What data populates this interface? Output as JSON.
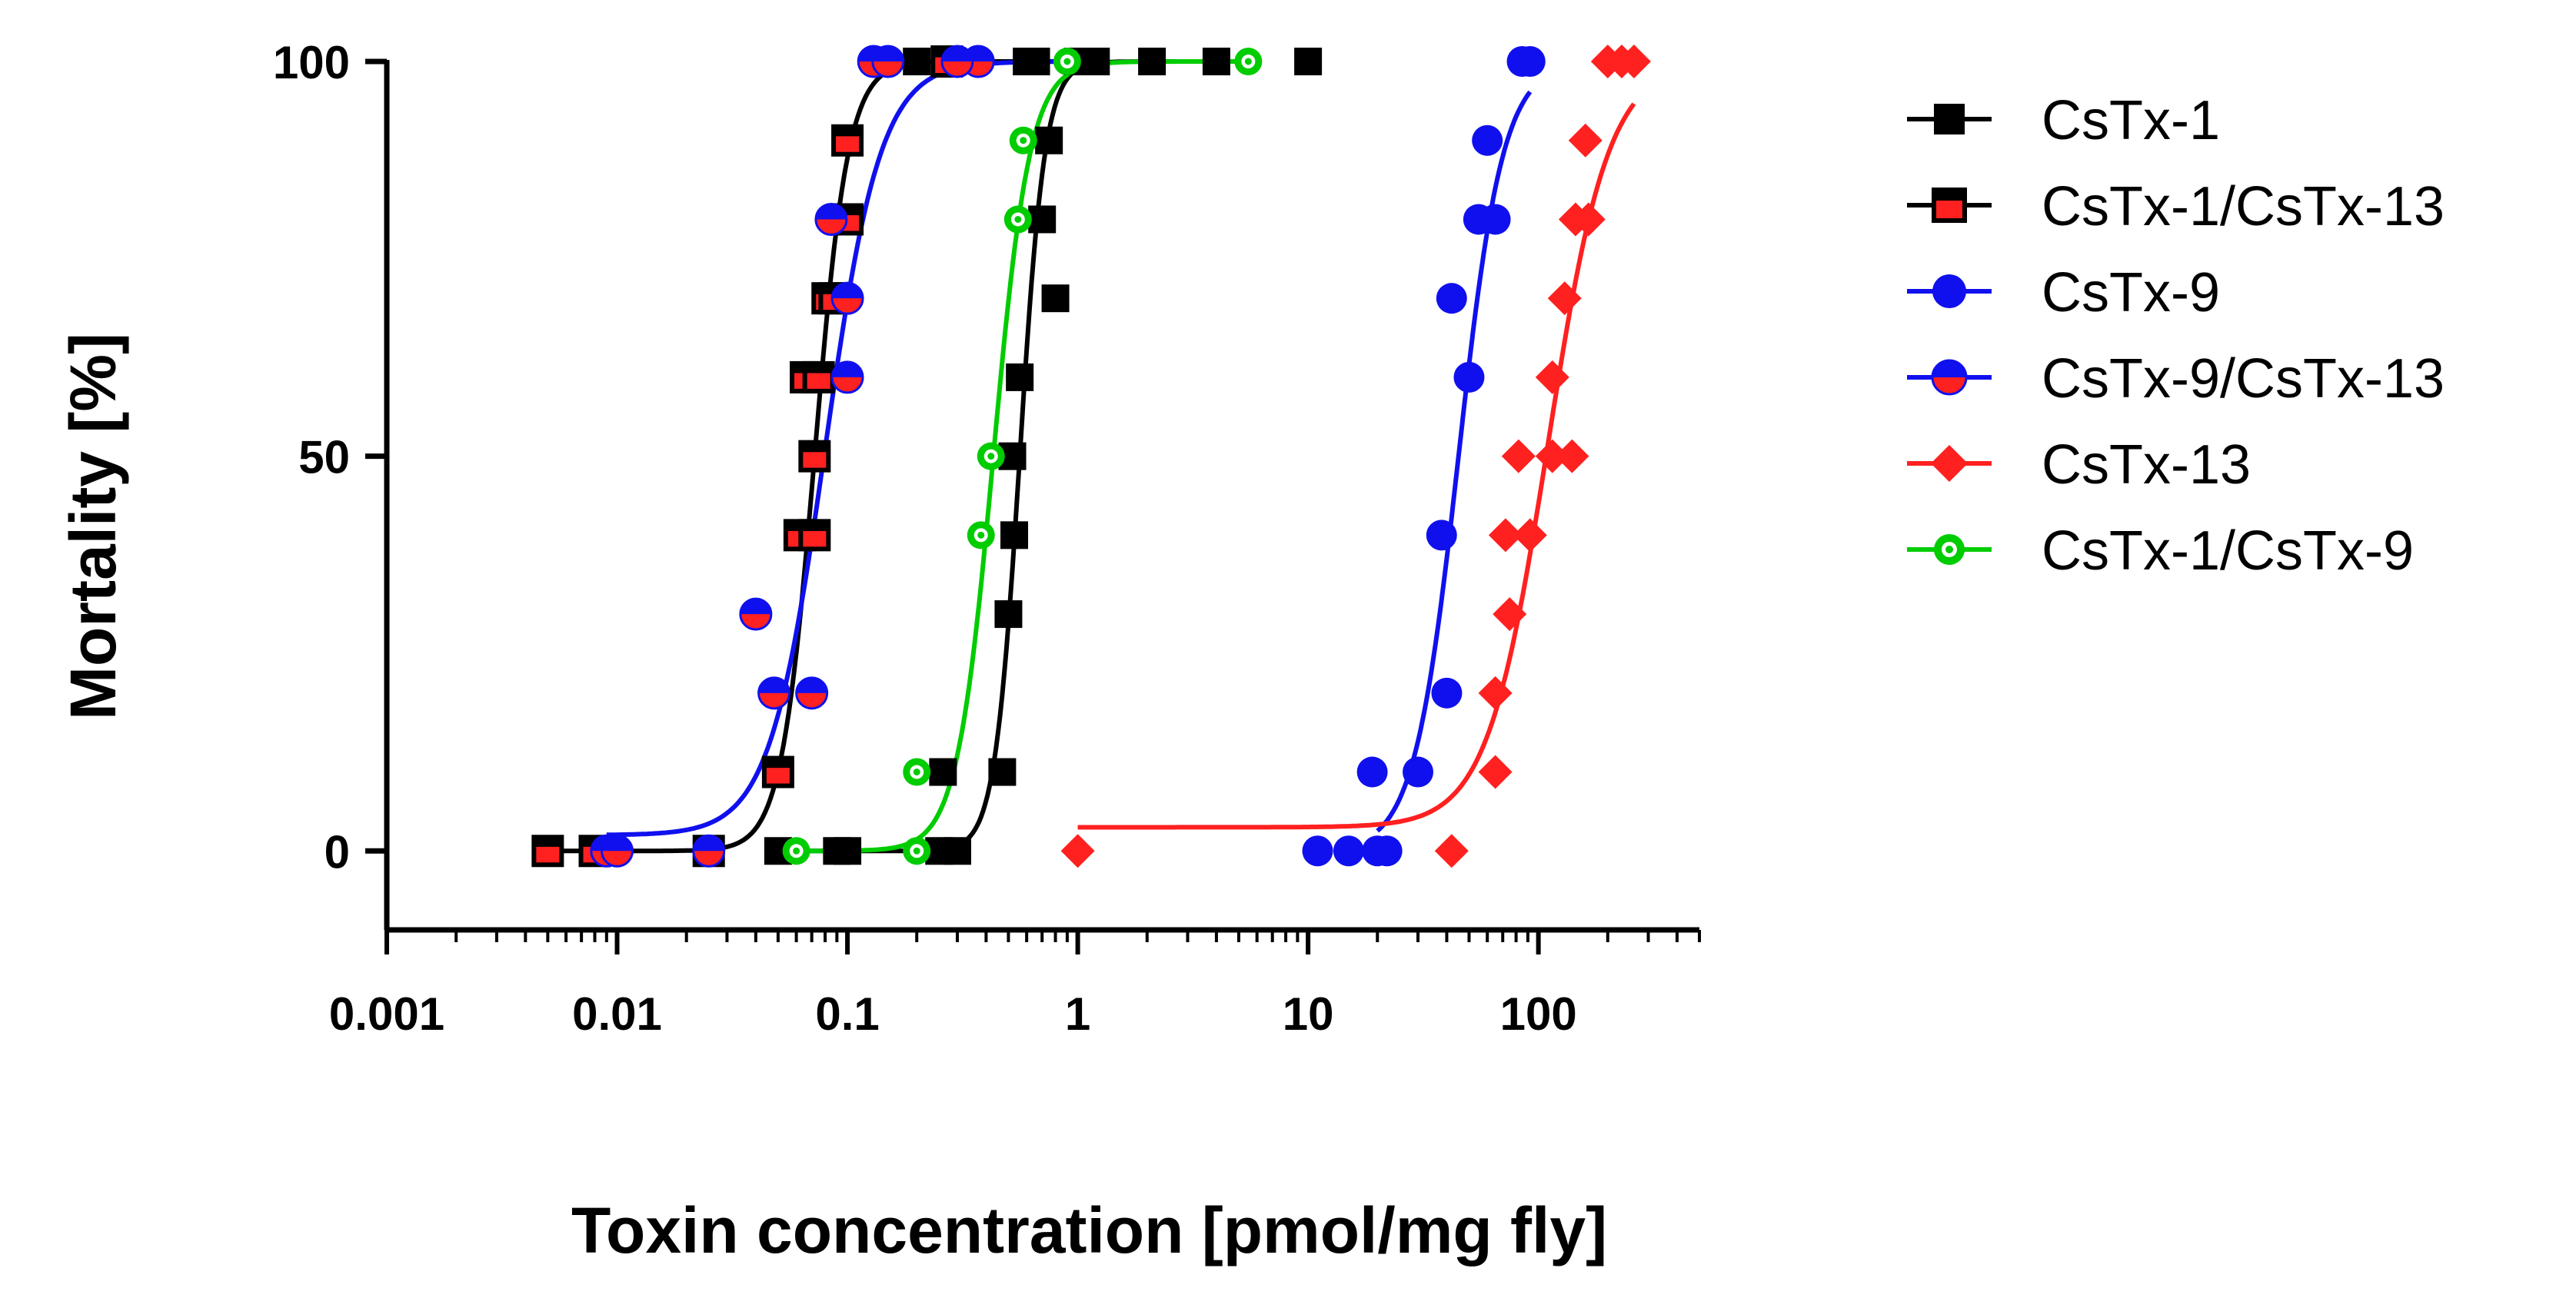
{
  "chart_data": {
    "type": "scatter",
    "title": "",
    "xlabel": "Toxin concentration [pmol/mg fly]",
    "ylabel": "Mortality [%]",
    "xscale": "log",
    "xlim": [
      0.001,
      500
    ],
    "ylim": [
      -10,
      100
    ],
    "x_ticks": [
      0.001,
      0.01,
      0.1,
      1,
      10,
      100
    ],
    "x_tick_labels": [
      "0.001",
      "0.01",
      "0.1",
      "1",
      "10",
      "100"
    ],
    "y_ticks": [
      0,
      50,
      100
    ],
    "y_tick_labels": [
      "0",
      "50",
      "100"
    ],
    "grid": false,
    "legend_position": "right",
    "series": [
      {
        "name": "CsTx-1",
        "color": "#000000",
        "marker": "square",
        "fit": {
          "bottom": 0,
          "top": 100,
          "ec50": 0.56,
          "hill": 8,
          "xmin": 0.06,
          "xmax": 4
        },
        "points": [
          [
            0.05,
            0
          ],
          [
            0.09,
            0
          ],
          [
            0.1,
            0
          ],
          [
            0.25,
            0
          ],
          [
            0.3,
            0
          ],
          [
            0.26,
            10
          ],
          [
            0.47,
            10
          ],
          [
            0.5,
            30
          ],
          [
            0.53,
            40
          ],
          [
            0.52,
            50
          ],
          [
            0.56,
            60
          ],
          [
            0.8,
            70
          ],
          [
            0.7,
            80
          ],
          [
            0.75,
            90
          ],
          [
            0.66,
            100
          ],
          [
            1.0,
            100
          ],
          [
            1.2,
            100
          ],
          [
            2.1,
            100
          ],
          [
            4.0,
            100
          ],
          [
            10,
            100
          ],
          [
            0.2,
            100
          ],
          [
            0.6,
            100
          ]
        ]
      },
      {
        "name": "CsTx-1/CsTx-13",
        "color": "#000000",
        "fill2": "#ff2020",
        "marker": "square-split",
        "fit": {
          "bottom": 0,
          "top": 100,
          "ec50": 0.072,
          "hill": 6,
          "xmin": 0.005,
          "xmax": 1.0
        },
        "points": [
          [
            0.005,
            0
          ],
          [
            0.008,
            0
          ],
          [
            0.025,
            0
          ],
          [
            0.05,
            10
          ],
          [
            0.062,
            40
          ],
          [
            0.072,
            40
          ],
          [
            0.072,
            50
          ],
          [
            0.066,
            60
          ],
          [
            0.075,
            60
          ],
          [
            0.082,
            70
          ],
          [
            0.088,
            70
          ],
          [
            0.1,
            80
          ],
          [
            0.1,
            90
          ],
          [
            0.27,
            100
          ]
        ]
      },
      {
        "name": "CsTx-9",
        "color": "#1010ee",
        "marker": "circle",
        "fit": {
          "bottom": 0,
          "top": 100,
          "ec50": 45,
          "hill": 4.5,
          "xmin": 20,
          "xmax": 92
        },
        "points": [
          [
            11,
            0
          ],
          [
            15,
            0
          ],
          [
            20,
            0
          ],
          [
            22,
            0
          ],
          [
            19,
            10
          ],
          [
            30,
            10
          ],
          [
            40,
            20
          ],
          [
            38,
            40
          ],
          [
            42,
            70
          ],
          [
            50,
            60
          ],
          [
            55,
            80
          ],
          [
            65,
            80
          ],
          [
            60,
            90
          ],
          [
            85,
            100
          ],
          [
            92,
            100
          ]
        ]
      },
      {
        "name": "CsTx-9/CsTx-13",
        "color": "#1010ee",
        "fill2": "#ff2020",
        "marker": "circle-split",
        "fit": {
          "bottom": 2,
          "top": 100,
          "ec50": 0.08,
          "hill": 3.6,
          "xmin": 0.009,
          "xmax": 0.8
        },
        "points": [
          [
            0.009,
            0
          ],
          [
            0.01,
            0
          ],
          [
            0.025,
            0
          ],
          [
            0.04,
            30
          ],
          [
            0.048,
            20
          ],
          [
            0.07,
            20
          ],
          [
            0.1,
            60
          ],
          [
            0.1,
            70
          ],
          [
            0.085,
            80
          ],
          [
            0.13,
            100
          ],
          [
            0.15,
            100
          ],
          [
            0.37,
            100
          ],
          [
            0.3,
            100
          ]
        ]
      },
      {
        "name": "CsTx-13",
        "color": "#ff2020",
        "marker": "diamond",
        "fit": {
          "bottom": 3,
          "top": 100,
          "ec50": 110,
          "hill": 3.3,
          "xmin": 1.0,
          "xmax": 260
        },
        "points": [
          [
            1,
            0
          ],
          [
            42,
            0
          ],
          [
            65,
            10
          ],
          [
            65,
            20
          ],
          [
            75,
            30
          ],
          [
            72,
            40
          ],
          [
            92,
            40
          ],
          [
            82,
            50
          ],
          [
            115,
            50
          ],
          [
            140,
            50
          ],
          [
            115,
            60
          ],
          [
            130,
            70
          ],
          [
            145,
            80
          ],
          [
            165,
            80
          ],
          [
            160,
            90
          ],
          [
            200,
            100
          ],
          [
            230,
            100
          ],
          [
            260,
            100
          ]
        ]
      },
      {
        "name": "CsTx-1/CsTx-9",
        "color": "#00cc00",
        "fill2": "#ffffff",
        "marker": "circle-dot",
        "fit": {
          "bottom": 0,
          "top": 100,
          "ec50": 0.43,
          "hill": 5.5,
          "xmin": 0.045,
          "xmax": 5.5
        },
        "points": [
          [
            0.06,
            0
          ],
          [
            0.2,
            0
          ],
          [
            0.2,
            10
          ],
          [
            0.38,
            40
          ],
          [
            0.42,
            50
          ],
          [
            0.55,
            80
          ],
          [
            0.58,
            90
          ],
          [
            0.9,
            100
          ],
          [
            5.5,
            100
          ]
        ]
      }
    ]
  }
}
